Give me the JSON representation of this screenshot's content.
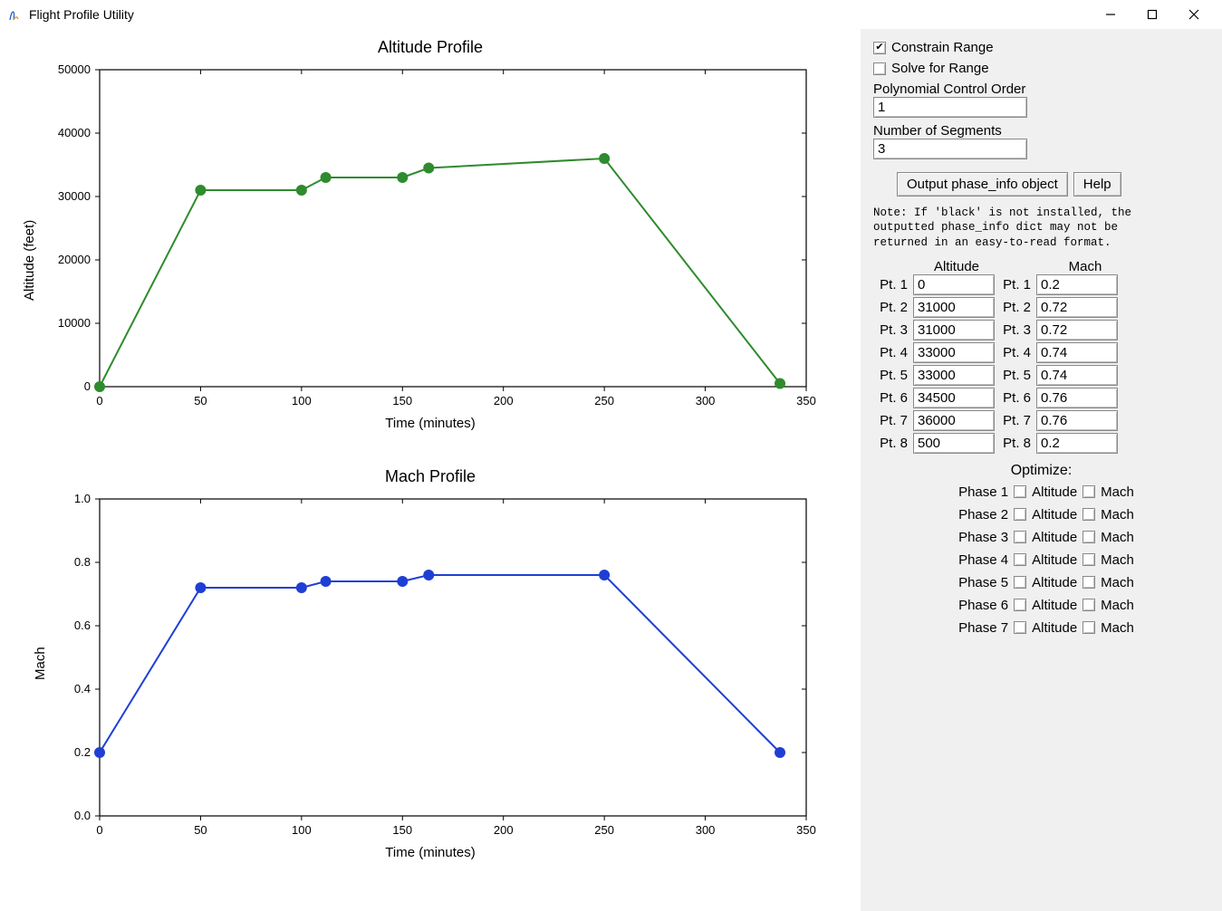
{
  "window": {
    "title": "Flight Profile Utility"
  },
  "charts": {
    "altitude": {
      "type": "line",
      "title": "Altitude Profile",
      "xlabel": "Time (minutes)",
      "ylabel": "Altitude (feet)",
      "xlim": [
        0,
        350
      ],
      "ylim": [
        0,
        50000
      ],
      "xticks": [
        0,
        50,
        100,
        150,
        200,
        250,
        300,
        350
      ],
      "yticks": [
        0,
        10000,
        20000,
        30000,
        40000,
        50000
      ],
      "line_color": "#2e8b2e",
      "marker_color": "#2e8b2e",
      "marker_size": 6,
      "line_width": 2,
      "background_color": "#ffffff",
      "axis_color": "#000000",
      "x": [
        0,
        50,
        100,
        112,
        150,
        163,
        250,
        337
      ],
      "y": [
        0,
        31000,
        31000,
        33000,
        33000,
        34500,
        36000,
        500
      ]
    },
    "mach": {
      "type": "line",
      "title": "Mach Profile",
      "xlabel": "Time (minutes)",
      "ylabel": "Mach",
      "xlim": [
        0,
        350
      ],
      "ylim": [
        0.0,
        1.0
      ],
      "xticks": [
        0,
        50,
        100,
        150,
        200,
        250,
        300,
        350
      ],
      "yticks": [
        0.0,
        0.2,
        0.4,
        0.6,
        0.8,
        1.0
      ],
      "ytick_labels": [
        "0.0",
        "0.2",
        "0.4",
        "0.6",
        "0.8",
        "1.0"
      ],
      "line_color": "#1f3fd4",
      "marker_color": "#1f3fd4",
      "marker_size": 6,
      "line_width": 2,
      "background_color": "#ffffff",
      "axis_color": "#000000",
      "x": [
        0,
        50,
        100,
        112,
        150,
        163,
        250,
        337
      ],
      "y": [
        0.2,
        0.72,
        0.72,
        0.74,
        0.74,
        0.76,
        0.76,
        0.2
      ]
    }
  },
  "controls": {
    "constrain_range": {
      "label": "Constrain Range",
      "checked": true
    },
    "solve_for_range": {
      "label": "Solve for Range",
      "checked": false
    },
    "poly_order": {
      "label": "Polynomial Control Order",
      "value": "1"
    },
    "num_segments": {
      "label": "Number of Segments",
      "value": "3"
    },
    "output_button": "Output phase_info object",
    "help_button": "Help",
    "note": "Note: If 'black' is not installed, the\noutputted phase_info dict may not be\nreturned in an easy-to-read format."
  },
  "table": {
    "col1_header": "Altitude",
    "col2_header": "Mach",
    "rows": [
      {
        "label": "Pt. 1",
        "alt": "0",
        "mach": "0.2"
      },
      {
        "label": "Pt. 2",
        "alt": "31000",
        "mach": "0.72"
      },
      {
        "label": "Pt. 3",
        "alt": "31000",
        "mach": "0.72"
      },
      {
        "label": "Pt. 4",
        "alt": "33000",
        "mach": "0.74"
      },
      {
        "label": "Pt. 5",
        "alt": "33000",
        "mach": "0.74"
      },
      {
        "label": "Pt. 6",
        "alt": "34500",
        "mach": "0.76"
      },
      {
        "label": "Pt. 7",
        "alt": "36000",
        "mach": "0.76"
      },
      {
        "label": "Pt. 8",
        "alt": "500",
        "mach": "0.2"
      }
    ]
  },
  "optimize": {
    "header": "Optimize:",
    "alt_label": "Altitude",
    "mach_label": "Mach",
    "phases": [
      {
        "label": "Phase 1",
        "alt": false,
        "mach": false
      },
      {
        "label": "Phase 2",
        "alt": false,
        "mach": false
      },
      {
        "label": "Phase 3",
        "alt": false,
        "mach": false
      },
      {
        "label": "Phase 4",
        "alt": false,
        "mach": false
      },
      {
        "label": "Phase 5",
        "alt": false,
        "mach": false
      },
      {
        "label": "Phase 6",
        "alt": false,
        "mach": false
      },
      {
        "label": "Phase 7",
        "alt": false,
        "mach": false
      }
    ]
  }
}
